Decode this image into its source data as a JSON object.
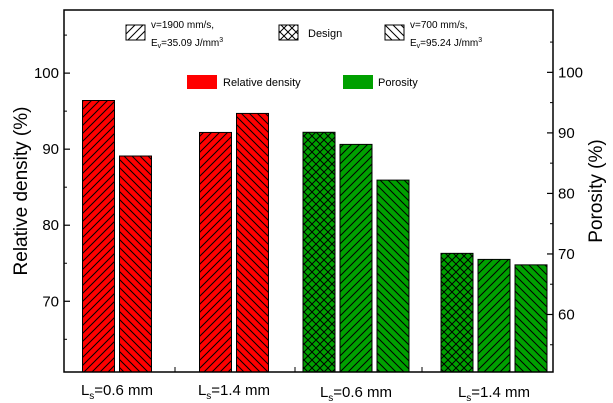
{
  "chart_data": {
    "type": "bar",
    "left_axis": {
      "label": "Relative density (%)",
      "ticks": [
        "70",
        "80",
        "90",
        "100"
      ],
      "ylim": [
        60.7,
        108.3
      ]
    },
    "right_axis": {
      "label": "Porosity (%)",
      "ticks": [
        "60",
        "70",
        "80",
        "90",
        "100"
      ],
      "ylim": [
        50.5,
        110.3
      ]
    },
    "x_labels": [
      {
        "main": "L",
        "sub": "s",
        "rest": "=0.6 mm"
      },
      {
        "main": "L",
        "sub": "s",
        "rest": "=1.4 mm"
      },
      {
        "main": "L",
        "sub": "s",
        "rest": "=0.6 mm"
      },
      {
        "main": "L",
        "sub": "s",
        "rest": "=1.4 mm"
      }
    ],
    "series": [
      {
        "name": "Relative density",
        "axis": "left",
        "color": "#ff0000",
        "bars": [
          {
            "group": 0,
            "value": 96.4,
            "pattern": "forward"
          },
          {
            "group": 0,
            "value": 89.1,
            "pattern": "back"
          },
          {
            "group": 1,
            "value": 92.2,
            "pattern": "forward"
          },
          {
            "group": 1,
            "value": 94.7,
            "pattern": "back"
          }
        ]
      },
      {
        "name": "Porosity",
        "axis": "right",
        "color": "#00a000",
        "bars": [
          {
            "group": 2,
            "value": 90.1,
            "pattern": "cross"
          },
          {
            "group": 2,
            "value": 88.1,
            "pattern": "forward"
          },
          {
            "group": 2,
            "value": 82.2,
            "pattern": "back"
          },
          {
            "group": 3,
            "value": 70.1,
            "pattern": "cross"
          },
          {
            "group": 3,
            "value": 69.1,
            "pattern": "forward"
          },
          {
            "group": 3,
            "value": 68.2,
            "pattern": "back"
          }
        ]
      }
    ],
    "legend": {
      "placement": "top",
      "patterns": [
        {
          "pattern": "forward",
          "line1": "v=1900 mm/s,",
          "line2_main": "E",
          "line2_sub": "v",
          "line2_rest": "=35.09 J/mm",
          "line2_sup": "3"
        },
        {
          "pattern": "cross",
          "line1": "Design"
        },
        {
          "pattern": "back",
          "line1": "v=700 mm/s,",
          "line2_main": "E",
          "line2_sub": "v",
          "line2_rest": "=95.24 J/mm",
          "line2_sup": "3"
        }
      ],
      "colors": [
        {
          "label": "Relative density",
          "color": "#ff0000"
        },
        {
          "label": "Porosity",
          "color": "#00a000"
        }
      ]
    }
  }
}
